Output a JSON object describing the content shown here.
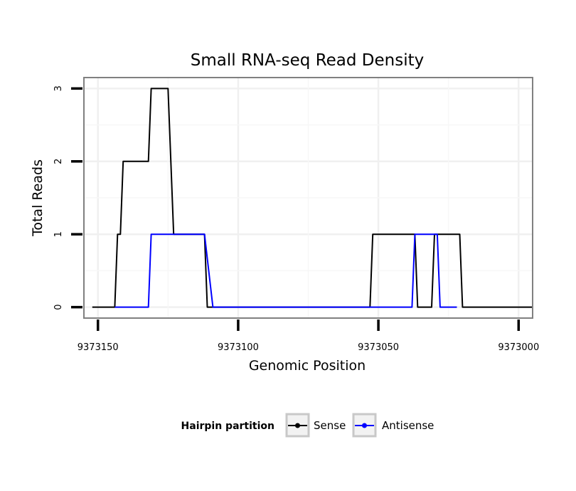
{
  "chart_data": {
    "type": "line",
    "title": "Small RNA-seq Read Density",
    "xlabel": "Genomic Position",
    "ylabel": "Total Reads",
    "x_reversed": true,
    "xlim": [
      9373155,
      9372995
    ],
    "ylim": [
      -0.15,
      3.15
    ],
    "x_ticks": [
      9373150,
      9373100,
      9373050,
      9373000
    ],
    "x_tick_labels": [
      "9373150",
      "9373100",
      "9373050",
      "9373000"
    ],
    "y_ticks": [
      0,
      1,
      2,
      3
    ],
    "y_tick_labels": [
      "0",
      "1",
      "2",
      "3"
    ],
    "grid": true,
    "legend": {
      "title": "Hairpin partition",
      "position": "bottom",
      "entries": [
        "Sense",
        "Antisense"
      ]
    },
    "series": [
      {
        "name": "Sense",
        "color": "#000000",
        "x": [
          9373152,
          9373144,
          9373143,
          9373142,
          9373141,
          9373140,
          9373132,
          9373131,
          9373130,
          9373125,
          9373123,
          9373122,
          9373112,
          9373111,
          9373110,
          9373053,
          9373052,
          9373037,
          9373036,
          9373035,
          9373031,
          9373030,
          9373021,
          9373020,
          9373019,
          9372995
        ],
        "y": [
          0,
          0,
          1,
          1,
          2,
          2,
          2,
          3,
          3,
          3,
          1,
          1,
          1,
          0,
          0,
          0,
          1,
          1,
          0,
          0,
          0,
          1,
          1,
          0,
          0,
          0
        ]
      },
      {
        "name": "Antisense",
        "color": "#0000ff",
        "x": [
          9373144,
          9373132,
          9373131,
          9373113,
          9373112,
          9373109,
          9373063,
          9373053,
          9373038,
          9373037,
          9373031,
          9373030,
          9373029,
          9373028,
          9373022
        ],
        "y": [
          0,
          0,
          1,
          1,
          1,
          0,
          0,
          0,
          0,
          1,
          1,
          1,
          1,
          0,
          0
        ]
      }
    ]
  }
}
